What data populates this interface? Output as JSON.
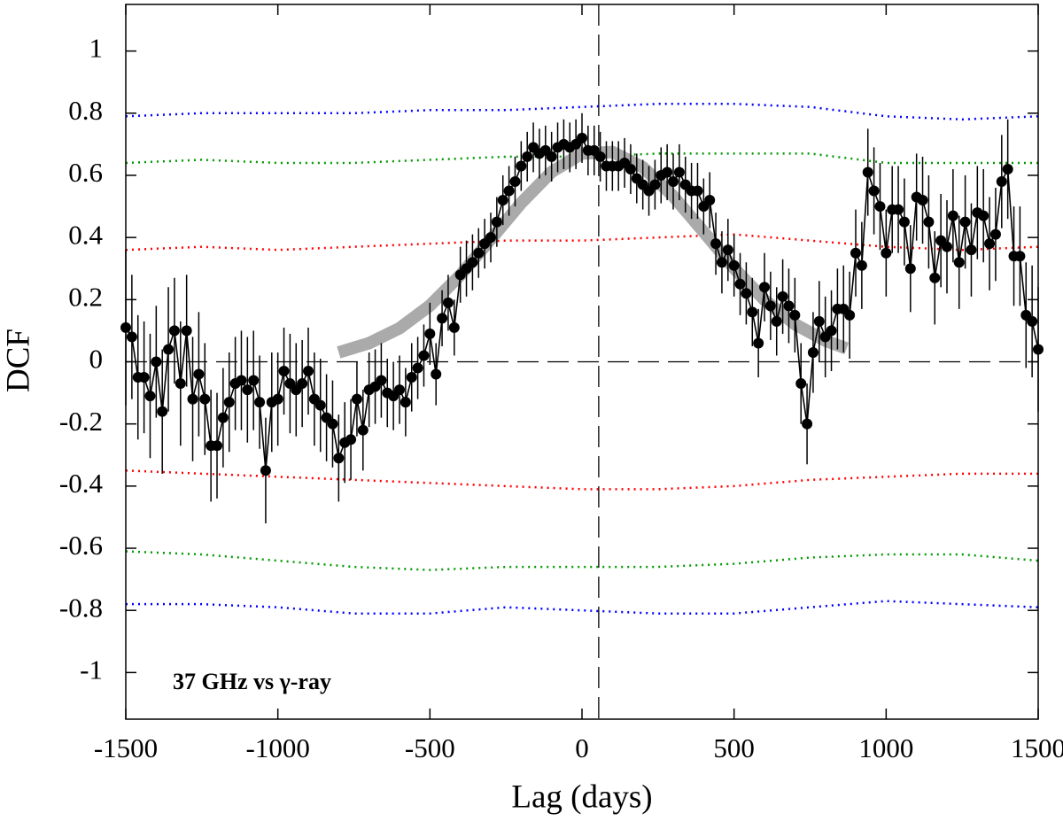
{
  "chart_data": {
    "type": "line",
    "xlabel": "Lag (days)",
    "ylabel": "DCF",
    "annotation": "37 GHz vs γ-ray",
    "xlim": [
      -1500,
      1500
    ],
    "ylim": [
      -1.15,
      1.15
    ],
    "xticks": [
      -1500,
      -1000,
      -500,
      0,
      500,
      1000,
      1500
    ],
    "yticks": [
      -1,
      -0.8,
      -0.6,
      -0.4,
      -0.2,
      0,
      0.2,
      0.4,
      0.6,
      0.8,
      1
    ],
    "vline": 55,
    "hline": 0,
    "x": [
      -1500,
      -1480,
      -1460,
      -1440,
      -1420,
      -1400,
      -1380,
      -1360,
      -1340,
      -1320,
      -1300,
      -1280,
      -1260,
      -1240,
      -1220,
      -1200,
      -1180,
      -1160,
      -1140,
      -1120,
      -1100,
      -1080,
      -1060,
      -1040,
      -1020,
      -1000,
      -980,
      -960,
      -940,
      -920,
      -900,
      -880,
      -860,
      -840,
      -820,
      -800,
      -780,
      -760,
      -740,
      -720,
      -700,
      -680,
      -660,
      -640,
      -620,
      -600,
      -580,
      -560,
      -540,
      -520,
      -500,
      -480,
      -460,
      -440,
      -420,
      -400,
      -380,
      -360,
      -340,
      -320,
      -300,
      -280,
      -260,
      -240,
      -220,
      -200,
      -180,
      -160,
      -140,
      -120,
      -100,
      -80,
      -60,
      -40,
      -20,
      0,
      20,
      40,
      60,
      80,
      100,
      120,
      140,
      160,
      180,
      200,
      220,
      240,
      260,
      280,
      300,
      320,
      340,
      360,
      380,
      400,
      420,
      440,
      460,
      480,
      500,
      520,
      540,
      560,
      580,
      600,
      620,
      640,
      660,
      680,
      700,
      720,
      740,
      760,
      780,
      800,
      820,
      840,
      860,
      880,
      900,
      920,
      940,
      960,
      980,
      1000,
      1020,
      1040,
      1060,
      1080,
      1100,
      1120,
      1140,
      1160,
      1180,
      1200,
      1220,
      1240,
      1260,
      1280,
      1300,
      1320,
      1340,
      1360,
      1380,
      1400,
      1420,
      1440,
      1460,
      1480,
      1500
    ],
    "series": [
      {
        "color": "#000000",
        "values": [
          0.11,
          0.08,
          -0.05,
          -0.05,
          -0.11,
          0.0,
          -0.16,
          0.04,
          0.1,
          -0.07,
          0.1,
          -0.12,
          -0.04,
          -0.12,
          -0.27,
          -0.27,
          -0.18,
          -0.13,
          -0.07,
          -0.06,
          -0.09,
          -0.06,
          -0.13,
          -0.35,
          -0.13,
          -0.12,
          -0.03,
          -0.07,
          -0.09,
          -0.07,
          -0.03,
          -0.12,
          -0.14,
          -0.18,
          -0.2,
          -0.31,
          -0.26,
          -0.25,
          -0.12,
          -0.22,
          -0.09,
          -0.08,
          -0.06,
          -0.1,
          -0.11,
          -0.09,
          -0.13,
          -0.05,
          -0.02,
          0.02,
          0.09,
          -0.04,
          0.14,
          0.19,
          0.11,
          0.28,
          0.3,
          0.32,
          0.35,
          0.38,
          0.4,
          0.45,
          0.52,
          0.55,
          0.58,
          0.63,
          0.66,
          0.69,
          0.67,
          0.68,
          0.66,
          0.69,
          0.7,
          0.69,
          0.7,
          0.72,
          0.68,
          0.68,
          0.66,
          0.63,
          0.63,
          0.63,
          0.64,
          0.62,
          0.59,
          0.57,
          0.55,
          0.57,
          0.6,
          0.61,
          0.58,
          0.61,
          0.57,
          0.55,
          0.55,
          0.5,
          0.52,
          0.38,
          0.32,
          0.36,
          0.31,
          0.25,
          0.22,
          0.16,
          0.06,
          0.24,
          0.18,
          0.13,
          0.21,
          0.18,
          0.15,
          -0.07,
          -0.2,
          0.03,
          0.13,
          0.08,
          0.1,
          0.17,
          0.17,
          0.15,
          0.35,
          0.31,
          0.61,
          0.55,
          0.5,
          0.35,
          0.49,
          0.49,
          0.45,
          0.3,
          0.53,
          0.52,
          0.45,
          0.27,
          0.39,
          0.37,
          0.47,
          0.32,
          0.45,
          0.36,
          0.48,
          0.47,
          0.38,
          0.41,
          0.58,
          0.62,
          0.34,
          0.34,
          0.15,
          0.13,
          0.04
        ],
        "errors": [
          0.25,
          0.2,
          0.2,
          0.18,
          0.2,
          0.18,
          0.2,
          0.2,
          0.17,
          0.2,
          0.18,
          0.2,
          0.2,
          0.18,
          0.18,
          0.17,
          0.16,
          0.16,
          0.15,
          0.16,
          0.17,
          0.16,
          0.15,
          0.17,
          0.16,
          0.15,
          0.14,
          0.16,
          0.15,
          0.14,
          0.14,
          0.15,
          0.15,
          0.14,
          0.14,
          0.14,
          0.13,
          0.13,
          0.12,
          0.13,
          0.12,
          0.12,
          0.12,
          0.11,
          0.11,
          0.11,
          0.11,
          0.11,
          0.1,
          0.1,
          0.1,
          0.1,
          0.09,
          0.09,
          0.09,
          0.09,
          0.09,
          0.09,
          0.08,
          0.08,
          0.08,
          0.08,
          0.08,
          0.08,
          0.08,
          0.08,
          0.08,
          0.08,
          0.08,
          0.08,
          0.08,
          0.08,
          0.08,
          0.08,
          0.08,
          0.08,
          0.08,
          0.08,
          0.08,
          0.08,
          0.08,
          0.08,
          0.08,
          0.08,
          0.08,
          0.08,
          0.08,
          0.08,
          0.09,
          0.09,
          0.09,
          0.09,
          0.09,
          0.09,
          0.09,
          0.09,
          0.09,
          0.1,
          0.1,
          0.1,
          0.1,
          0.1,
          0.1,
          0.11,
          0.11,
          0.11,
          0.11,
          0.11,
          0.12,
          0.12,
          0.12,
          0.13,
          0.13,
          0.13,
          0.13,
          0.13,
          0.13,
          0.13,
          0.14,
          0.14,
          0.14,
          0.14,
          0.14,
          0.14,
          0.14,
          0.14,
          0.14,
          0.14,
          0.14,
          0.14,
          0.14,
          0.14,
          0.15,
          0.15,
          0.15,
          0.15,
          0.15,
          0.15,
          0.15,
          0.15,
          0.15,
          0.15,
          0.15,
          0.15,
          0.15,
          0.16,
          0.16,
          0.16,
          0.17,
          0.18,
          0.2
        ]
      }
    ],
    "fit": {
      "color": "#aaaaaa",
      "x": [
        -800,
        -700,
        -600,
        -500,
        -400,
        -300,
        -200,
        -100,
        0,
        100,
        200,
        300,
        400,
        500,
        600,
        700,
        800,
        870
      ],
      "values": [
        0.03,
        0.06,
        0.108,
        0.181,
        0.279,
        0.394,
        0.511,
        0.611,
        0.67,
        0.675,
        0.626,
        0.533,
        0.418,
        0.301,
        0.199,
        0.121,
        0.068,
        0.043
      ]
    },
    "bands": [
      {
        "color": "#0000ff",
        "x": [
          -1500,
          -1250,
          -1000,
          -750,
          -500,
          -250,
          0,
          250,
          500,
          750,
          1000,
          1250,
          1500
        ],
        "values": [
          0.79,
          0.8,
          0.8,
          0.8,
          0.81,
          0.81,
          0.82,
          0.83,
          0.83,
          0.82,
          0.79,
          0.78,
          0.79
        ]
      },
      {
        "color": "#009900",
        "x": [
          -1500,
          -1250,
          -1000,
          -750,
          -500,
          -250,
          0,
          250,
          500,
          750,
          1000,
          1250,
          1500
        ],
        "values": [
          0.64,
          0.65,
          0.64,
          0.64,
          0.65,
          0.66,
          0.66,
          0.67,
          0.67,
          0.67,
          0.64,
          0.64,
          0.64
        ]
      },
      {
        "color": "#ff0000",
        "x": [
          -1500,
          -1250,
          -1000,
          -750,
          -500,
          -250,
          0,
          250,
          500,
          750,
          1000,
          1250,
          1500
        ],
        "values": [
          0.36,
          0.37,
          0.36,
          0.37,
          0.38,
          0.39,
          0.39,
          0.4,
          0.41,
          0.39,
          0.37,
          0.36,
          0.37
        ]
      },
      {
        "color": "#ff0000",
        "x": [
          -1500,
          -1250,
          -1000,
          -750,
          -500,
          -250,
          0,
          250,
          500,
          750,
          1000,
          1250,
          1500
        ],
        "values": [
          -0.35,
          -0.36,
          -0.37,
          -0.38,
          -0.39,
          -0.4,
          -0.41,
          -0.41,
          -0.4,
          -0.38,
          -0.37,
          -0.36,
          -0.36
        ]
      },
      {
        "color": "#009900",
        "x": [
          -1500,
          -1250,
          -1000,
          -750,
          -500,
          -250,
          0,
          250,
          500,
          750,
          1000,
          1250,
          1500
        ],
        "values": [
          -0.61,
          -0.62,
          -0.64,
          -0.66,
          -0.67,
          -0.66,
          -0.66,
          -0.66,
          -0.65,
          -0.63,
          -0.62,
          -0.62,
          -0.64
        ]
      },
      {
        "color": "#0000ff",
        "x": [
          -1500,
          -1250,
          -1000,
          -750,
          -500,
          -250,
          0,
          250,
          500,
          750,
          1000,
          1250,
          1500
        ],
        "values": [
          -0.78,
          -0.78,
          -0.79,
          -0.81,
          -0.81,
          -0.79,
          -0.8,
          -0.81,
          -0.81,
          -0.79,
          -0.77,
          -0.78,
          -0.79
        ]
      }
    ]
  }
}
